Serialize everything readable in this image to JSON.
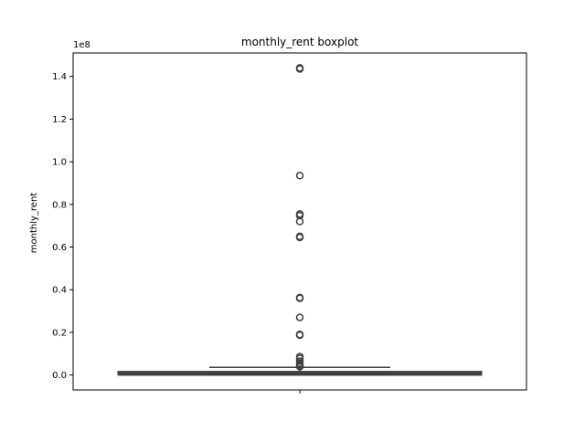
{
  "chart_data": {
    "type": "boxplot",
    "title": "monthly_rent boxplot",
    "xlabel": "",
    "ylabel": "monthly_rent",
    "y_scale_label": "1e8",
    "ylim": [
      -7000000,
      151000000
    ],
    "y_ticks": [
      0,
      20000000,
      40000000,
      60000000,
      80000000,
      100000000,
      120000000,
      140000000
    ],
    "y_tick_labels": [
      "0.0",
      "0.2",
      "0.4",
      "0.6",
      "0.8",
      "1.0",
      "1.2",
      "1.4"
    ],
    "grid": false,
    "box": {
      "whisker_low": 0,
      "q1": 300000,
      "median": 700000,
      "q3": 1300000,
      "whisker_high": 3600000
    },
    "outliers": [
      144000000,
      143500000,
      93500000,
      75500000,
      74800000,
      72000000,
      65000000,
      64500000,
      36300000,
      36000000,
      27000000,
      19000000,
      18700000,
      8600000,
      7800000,
      6500000,
      5500000,
      4800000,
      4200000,
      3900000
    ],
    "colors": {
      "box_fill": "#3b75af",
      "box_edge": "#3f3f3f",
      "outlier_edge": "#3f3f3f"
    }
  }
}
